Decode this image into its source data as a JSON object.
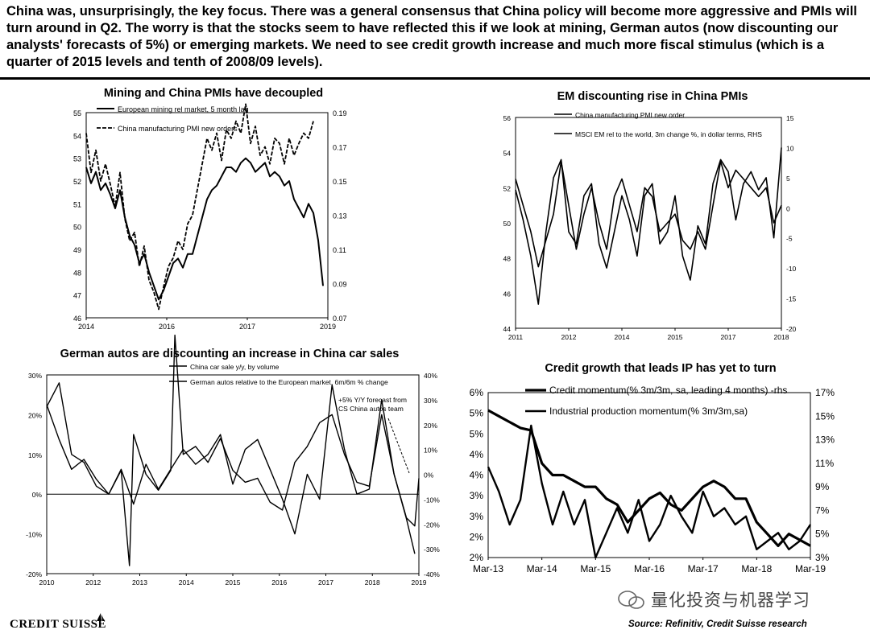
{
  "headline": "China was, unsurprisingly, the key focus. There was a general consensus that China policy will become more aggressive and PMIs will turn around in Q2. The worry is that the stocks seem to have reflected this if we look at mining, German autos (now discounting our analysts' forecasts of 5%) or emerging markets. We need to see credit growth increase and much more fiscal stimulus (which is a quarter of 2015 levels and tenth of 2008/09 levels).",
  "footer": {
    "logo": "CREDIT SUISSE",
    "source": "Source: Refinitiv, Credit Suisse research",
    "watermark": "量化投资与机器学习"
  },
  "chart_data": [
    {
      "type": "line",
      "title": "Mining and China PMIs have decoupled",
      "x_ticks": [
        "2014",
        "2016",
        "2017",
        "2019"
      ],
      "left_ticks": [
        "55",
        "54",
        "53",
        "52",
        "51",
        "50",
        "49",
        "48",
        "47",
        "46"
      ],
      "right_ticks": [
        "0.19",
        "0.17",
        "0.15",
        "0.13",
        "0.11",
        "0.09",
        "0.07"
      ],
      "ylim_left": [
        46,
        55
      ],
      "ylim_right": [
        0.07,
        0.19
      ],
      "xlim": [
        2014,
        2019
      ],
      "series": [
        {
          "name": "European mining rel market, 5 month lag",
          "axis": "left",
          "x": [
            2014.0,
            2014.1,
            2014.2,
            2014.3,
            2014.4,
            2014.5,
            2014.6,
            2014.7,
            2014.8,
            2014.9,
            2015.0,
            2015.1,
            2015.2,
            2015.3,
            2015.4,
            2015.5,
            2015.6,
            2015.7,
            2015.8,
            2015.9,
            2016.0,
            2016.1,
            2016.2,
            2016.3,
            2016.4,
            2016.5,
            2016.6,
            2016.7,
            2016.8,
            2016.9,
            2017.0,
            2017.1,
            2017.2,
            2017.3,
            2017.4,
            2017.5,
            2017.6,
            2017.7,
            2017.8,
            2017.9,
            2018.0,
            2018.1,
            2018.2,
            2018.3,
            2018.4,
            2018.5,
            2018.6,
            2018.7,
            2018.8,
            2018.9
          ],
          "values": [
            52.6,
            51.9,
            52.4,
            51.6,
            51.9,
            51.4,
            50.8,
            51.6,
            50.4,
            49.6,
            49.2,
            48.4,
            48.8,
            48.0,
            47.4,
            46.8,
            47.2,
            47.8,
            48.4,
            48.6,
            48.2,
            48.8,
            48.8,
            49.6,
            50.4,
            51.2,
            51.6,
            51.8,
            52.2,
            52.6,
            52.6,
            52.4,
            52.8,
            53.0,
            52.8,
            52.4,
            52.6,
            52.8,
            52.2,
            52.4,
            52.2,
            51.8,
            52.0,
            51.2,
            50.8,
            50.4,
            51.0,
            50.6,
            49.4,
            47.4
          ]
        },
        {
          "name": "China manufacturing PMI new orders",
          "axis": "right",
          "x": [
            2014.0,
            2014.1,
            2014.2,
            2014.3,
            2014.4,
            2014.5,
            2014.6,
            2014.7,
            2014.8,
            2014.9,
            2015.0,
            2015.1,
            2015.2,
            2015.3,
            2015.4,
            2015.5,
            2015.6,
            2015.7,
            2015.8,
            2015.9,
            2016.0,
            2016.1,
            2016.2,
            2016.3,
            2016.4,
            2016.5,
            2016.6,
            2016.7,
            2016.8,
            2016.9,
            2017.0,
            2017.1,
            2017.2,
            2017.3,
            2017.4,
            2017.5,
            2017.6,
            2017.7,
            2017.8,
            2017.9,
            2018.0,
            2018.1,
            2018.2,
            2018.3,
            2018.4,
            2018.5,
            2018.6,
            2018.7
          ],
          "values": [
            0.178,
            0.155,
            0.168,
            0.15,
            0.16,
            0.148,
            0.135,
            0.155,
            0.128,
            0.115,
            0.12,
            0.1,
            0.112,
            0.092,
            0.085,
            0.075,
            0.088,
            0.1,
            0.105,
            0.115,
            0.11,
            0.125,
            0.13,
            0.145,
            0.16,
            0.175,
            0.168,
            0.178,
            0.162,
            0.18,
            0.175,
            0.185,
            0.178,
            0.195,
            0.172,
            0.182,
            0.165,
            0.17,
            0.16,
            0.175,
            0.172,
            0.16,
            0.175,
            0.165,
            0.172,
            0.178,
            0.175,
            0.185
          ]
        }
      ]
    },
    {
      "type": "line",
      "title": "EM discounting rise in China PMIs",
      "x_ticks": [
        "2011",
        "2012",
        "2014",
        "2015",
        "2017",
        "2018"
      ],
      "left_ticks": [
        "56",
        "54",
        "52",
        "50",
        "48",
        "46",
        "44"
      ],
      "right_ticks": [
        "15",
        "10",
        "5",
        "0",
        "-5",
        "-10",
        "-15",
        "-20"
      ],
      "ylim_left": [
        44,
        56
      ],
      "ylim_right": [
        -20,
        15
      ],
      "xlim": [
        2011,
        2018
      ],
      "series": [
        {
          "name": "China manufacturing PMI new order",
          "axis": "left",
          "x": [
            2011.0,
            2011.2,
            2011.4,
            2011.6,
            2011.8,
            2012.0,
            2012.2,
            2012.4,
            2012.6,
            2012.8,
            2013.0,
            2013.2,
            2013.4,
            2013.6,
            2013.8,
            2014.0,
            2014.2,
            2014.4,
            2014.6,
            2014.8,
            2015.0,
            2015.2,
            2015.4,
            2015.6,
            2015.8,
            2016.0,
            2016.2,
            2016.4,
            2016.6,
            2016.8,
            2017.0,
            2017.2,
            2017.4,
            2017.6,
            2017.8,
            2018.0
          ],
          "values": [
            52.5,
            51.0,
            49.5,
            47.5,
            49.0,
            50.5,
            53.5,
            51.0,
            48.5,
            50.5,
            52.0,
            50.0,
            48.5,
            51.5,
            52.5,
            51.0,
            49.5,
            52.0,
            51.5,
            49.5,
            50.0,
            50.5,
            49.0,
            48.5,
            49.5,
            48.5,
            51.0,
            53.5,
            52.0,
            53.0,
            52.5,
            52.0,
            51.5,
            52.0,
            50.0,
            51.0
          ]
        },
        {
          "name": "MSCI EM rel to the world, 3m change %, in dollar terms, RHS",
          "axis": "right",
          "x": [
            2011.0,
            2011.2,
            2011.4,
            2011.6,
            2011.8,
            2012.0,
            2012.2,
            2012.4,
            2012.6,
            2012.8,
            2013.0,
            2013.2,
            2013.4,
            2013.6,
            2013.8,
            2014.0,
            2014.2,
            2014.4,
            2014.6,
            2014.8,
            2015.0,
            2015.2,
            2015.4,
            2015.6,
            2015.8,
            2016.0,
            2016.2,
            2016.4,
            2016.6,
            2016.8,
            2017.0,
            2017.2,
            2017.4,
            2017.6,
            2017.8,
            2018.0
          ],
          "values": [
            3,
            -2,
            -8,
            -16,
            -4,
            5,
            8,
            -4,
            -6,
            2,
            4,
            -6,
            -10,
            -4,
            2,
            -2,
            -8,
            2,
            4,
            -6,
            -4,
            2,
            -8,
            -12,
            -3,
            -6,
            4,
            8,
            6,
            -2,
            4,
            6,
            3,
            5,
            -5,
            10
          ]
        }
      ]
    },
    {
      "type": "line",
      "title": "German autos are discounting an increase in China car sales",
      "x_ticks": [
        "2010",
        "2012",
        "2013",
        "2014",
        "2015",
        "2016",
        "2017",
        "2018",
        "2019"
      ],
      "left_ticks": [
        "30%",
        "20%",
        "10%",
        "0%",
        "-10%",
        "-20%"
      ],
      "right_ticks": [
        "40%",
        "30%",
        "20%",
        "10%",
        "0%",
        "-10%",
        "-20%",
        "-30%",
        "-40%"
      ],
      "ylim_left": [
        -20,
        30
      ],
      "ylim_right": [
        -40,
        40
      ],
      "xlim": [
        2010,
        2019
      ],
      "annotation": "+5% Y/Y forecast from CS China autos team",
      "series": [
        {
          "name": "China car sale y/y, by volume",
          "axis": "left",
          "x": [
            2010.0,
            2010.3,
            2010.6,
            2010.9,
            2011.2,
            2011.5,
            2011.8,
            2012.0,
            2012.1,
            2012.4,
            2012.7,
            2013.0,
            2013.1,
            2013.3,
            2013.6,
            2013.9,
            2014.2,
            2014.5,
            2014.8,
            2015.1,
            2015.4,
            2015.7,
            2016.0,
            2016.3,
            2016.6,
            2016.9,
            2017.2,
            2017.5,
            2017.8,
            2018.1,
            2018.4,
            2018.7,
            2018.9,
            2019.0
          ],
          "values": [
            22,
            28,
            10,
            8,
            2,
            0,
            6,
            -18,
            15,
            5,
            1,
            6,
            40,
            10,
            12,
            8,
            14,
            6,
            3,
            4,
            -2,
            -4,
            8,
            12,
            18,
            20,
            10,
            3,
            2,
            20,
            5,
            -6,
            -8,
            4
          ]
        },
        {
          "name": "German autos relative to the European market, 6m/6m % change",
          "axis": "right",
          "x": [
            2010.0,
            2010.3,
            2010.6,
            2010.9,
            2011.2,
            2011.5,
            2011.8,
            2012.1,
            2012.4,
            2012.7,
            2013.0,
            2013.3,
            2013.6,
            2013.9,
            2014.2,
            2014.5,
            2014.8,
            2015.1,
            2015.4,
            2015.7,
            2016.0,
            2016.3,
            2016.6,
            2016.9,
            2017.2,
            2017.5,
            2017.8,
            2018.1,
            2018.4,
            2018.7,
            2018.9
          ],
          "values": [
            28,
            14,
            2,
            6,
            -2,
            -8,
            2,
            -12,
            4,
            -6,
            2,
            10,
            4,
            8,
            16,
            -4,
            10,
            14,
            2,
            -10,
            -24,
            0,
            -10,
            36,
            10,
            -8,
            -6,
            30,
            0,
            -18,
            -32
          ]
        }
      ]
    },
    {
      "type": "line",
      "title": "Credit growth that leads IP has yet to turn",
      "x_ticks": [
        "Mar-13",
        "Mar-14",
        "Mar-15",
        "Mar-16",
        "Mar-17",
        "Mar-18",
        "Mar-19"
      ],
      "left_ticks": [
        "6%",
        "5%",
        "5%",
        "4%",
        "4%",
        "3%",
        "3%",
        "2%",
        "2%"
      ],
      "right_ticks": [
        "17%",
        "15%",
        "13%",
        "11%",
        "9%",
        "7%",
        "5%",
        "3%"
      ],
      "ylim_left": [
        2,
        6
      ],
      "ylim_right": [
        3,
        17
      ],
      "xlim": [
        0,
        6
      ],
      "series": [
        {
          "name": "Credit momentum(% 3m/3m, sa, leading 4 months) -rhs",
          "axis": "right",
          "x": [
            0,
            0.2,
            0.4,
            0.6,
            0.8,
            1.0,
            1.2,
            1.4,
            1.6,
            1.8,
            2.0,
            2.2,
            2.4,
            2.6,
            2.8,
            3.0,
            3.2,
            3.4,
            3.6,
            3.8,
            4.0,
            4.2,
            4.4,
            4.6,
            4.8,
            5.0,
            5.2,
            5.4,
            5.6,
            5.8,
            6.0
          ],
          "values": [
            15.5,
            15,
            14.5,
            14,
            13.8,
            11,
            10,
            10,
            9.5,
            9,
            9,
            8,
            7.5,
            6,
            7,
            8,
            8.5,
            7.5,
            7,
            8,
            9,
            9.5,
            9,
            8,
            8,
            6,
            5,
            4,
            5,
            4.5,
            4
          ]
        },
        {
          "name": "Industrial production momentum(% 3m/3m,sa)",
          "axis": "left",
          "x": [
            0,
            0.2,
            0.4,
            0.6,
            0.8,
            1.0,
            1.2,
            1.4,
            1.6,
            1.8,
            2.0,
            2.2,
            2.4,
            2.6,
            2.8,
            3.0,
            3.2,
            3.4,
            3.6,
            3.8,
            4.0,
            4.2,
            4.4,
            4.6,
            4.8,
            5.0,
            5.2,
            5.4,
            5.6,
            5.8,
            6.0
          ],
          "values": [
            4.2,
            3.6,
            2.8,
            3.4,
            5.2,
            3.8,
            2.8,
            3.6,
            2.8,
            3.4,
            2.0,
            2.6,
            3.2,
            2.6,
            3.4,
            2.4,
            2.8,
            3.5,
            3.0,
            2.6,
            3.6,
            3.0,
            3.2,
            2.8,
            3.0,
            2.2,
            2.4,
            2.6,
            2.2,
            2.4,
            2.8
          ]
        }
      ]
    }
  ]
}
